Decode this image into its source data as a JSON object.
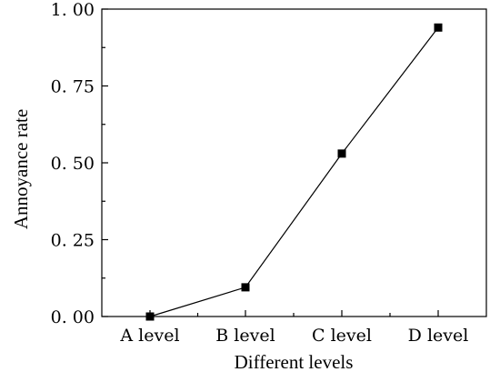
{
  "chart_data": {
    "type": "line",
    "title": "",
    "xlabel": "Different levels",
    "ylabel": "Annoyance rate",
    "categories": [
      "A level",
      "B level",
      "C level",
      "D level"
    ],
    "series": [
      {
        "values": [
          0.0,
          0.095,
          0.53,
          0.94
        ]
      }
    ],
    "ylim": [
      0,
      1
    ],
    "yticks": [
      0.0,
      0.25,
      0.5,
      0.75,
      1.0
    ],
    "ytick_labels": [
      "0. 00",
      "0. 25",
      "0. 50",
      "0. 75",
      "1. 00"
    ],
    "grid": false,
    "legend": "none",
    "marker": "square",
    "colors": {
      "line": "#000000",
      "marker": "#000000",
      "axis": "#000000",
      "background": "#ffffff"
    }
  }
}
